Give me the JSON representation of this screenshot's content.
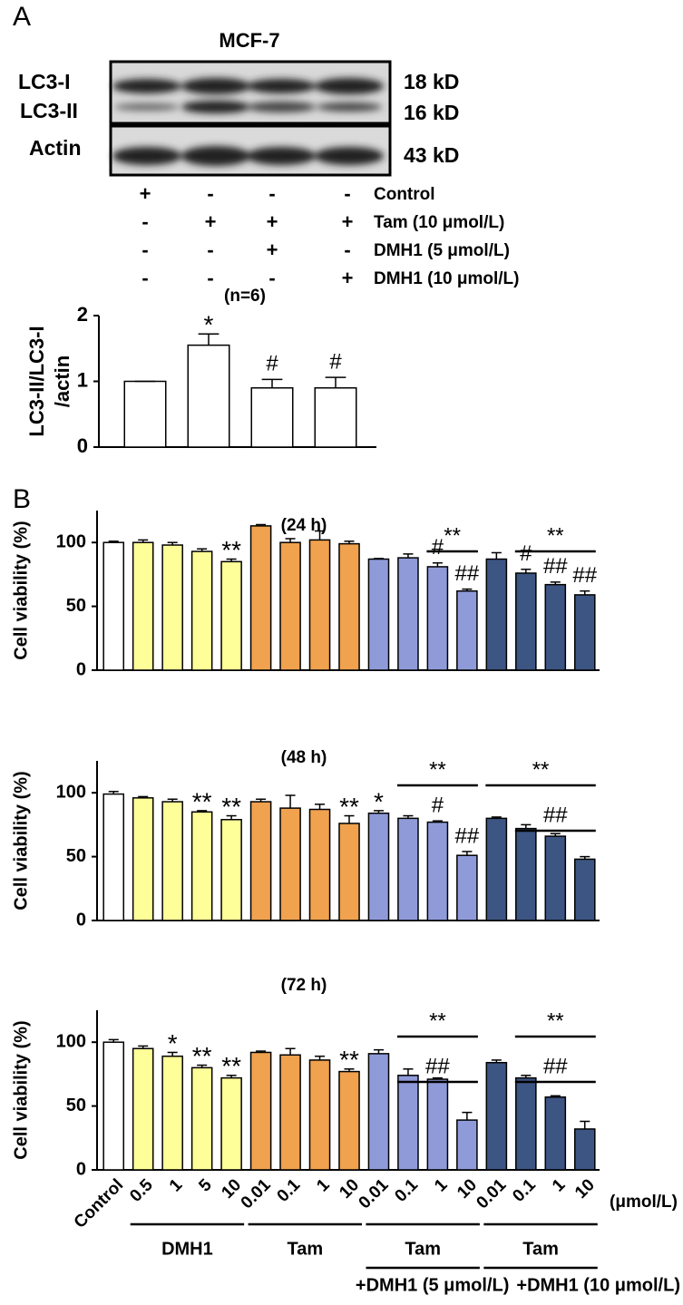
{
  "panel_labels": [
    "A",
    "B"
  ],
  "blot": {
    "title": "MCF-7",
    "bands": [
      {
        "label": "LC3-I",
        "size": "18 kD"
      },
      {
        "label": "LC3-II",
        "size": "16 kD"
      },
      {
        "label": "Actin",
        "size": "43 kD"
      }
    ]
  },
  "treatments": [
    {
      "label": "Control",
      "marks": [
        "+",
        "-",
        "-",
        "-"
      ]
    },
    {
      "label": "Tam (10 μmol/L)",
      "marks": [
        "-",
        "+",
        "+",
        "+"
      ]
    },
    {
      "label": "DMH1 (5 μmol/L)",
      "marks": [
        "-",
        "-",
        "+",
        "-"
      ]
    },
    {
      "label": "DMH1 (10 μmol/L)",
      "marks": [
        "-",
        "-",
        "-",
        "+"
      ]
    }
  ],
  "chart_data": [
    {
      "type": "bar",
      "subtitle": "(n=6)",
      "ylabel": [
        "LC3-II/LC3-I",
        "/actin"
      ],
      "values": [
        1,
        1.55,
        0.9,
        0.9
      ],
      "errors": [
        0,
        0.17,
        0.13,
        0.16
      ],
      "colors": [
        "#ffffff",
        "#ffffff",
        "#ffffff",
        "#ffffff"
      ],
      "annotations": [
        null,
        "*",
        "#",
        "#"
      ],
      "ylim": [
        0,
        2
      ],
      "yticks": [
        0,
        1,
        2
      ]
    },
    {
      "type": "bar",
      "title": "(24 h)",
      "ylabel": [
        "Cell viability (%)"
      ],
      "values": [
        100,
        100,
        98,
        93,
        85,
        113,
        100,
        102,
        99,
        87,
        88,
        81,
        62,
        87,
        76,
        67,
        59
      ],
      "errors": [
        1,
        2,
        2,
        2,
        2,
        1,
        3,
        7,
        2,
        0.5,
        3,
        3,
        1.5,
        5,
        3,
        2,
        3
      ],
      "colors": [
        "#ffffff",
        "#ffff99",
        "#ffff99",
        "#ffff99",
        "#ffff99",
        "#f0a24e",
        "#f0a24e",
        "#f0a24e",
        "#f0a24e",
        "#8f9bd9",
        "#8f9bd9",
        "#8f9bd9",
        "#8f9bd9",
        "#3d5583",
        "#3d5583",
        "#3d5583",
        "#3d5583"
      ],
      "annotations": [
        null,
        null,
        null,
        null,
        "**",
        null,
        null,
        null,
        null,
        null,
        null,
        "#",
        "##",
        null,
        "#",
        "##",
        "##"
      ],
      "brackets": [
        {
          "text": "**",
          "span": [
            11,
            12
          ]
        },
        {
          "text": "**",
          "span": [
            14,
            16
          ]
        }
      ],
      "ylim": [
        0,
        125
      ],
      "yticks": [
        0,
        50,
        100
      ]
    },
    {
      "type": "bar",
      "title": "(48 h)",
      "ylabel": [
        "Cell viability (%)"
      ],
      "values": [
        99,
        96,
        93,
        85,
        79,
        93,
        88,
        87,
        76,
        84,
        80,
        77,
        51,
        80,
        72,
        66,
        48
      ],
      "errors": [
        2,
        1,
        2,
        1,
        3,
        2,
        10,
        4,
        6,
        2,
        2,
        1,
        3,
        1,
        3,
        2,
        2
      ],
      "colors": [
        "#ffffff",
        "#ffff99",
        "#ffff99",
        "#ffff99",
        "#ffff99",
        "#f0a24e",
        "#f0a24e",
        "#f0a24e",
        "#f0a24e",
        "#8f9bd9",
        "#8f9bd9",
        "#8f9bd9",
        "#8f9bd9",
        "#3d5583",
        "#3d5583",
        "#3d5583",
        "#3d5583"
      ],
      "annotations": [
        null,
        null,
        null,
        "**",
        "**",
        null,
        null,
        null,
        "**",
        "*",
        null,
        "#",
        "##",
        null,
        null,
        null,
        null
      ],
      "brackets": [
        {
          "text": "**",
          "span": [
            10,
            12
          ]
        },
        {
          "text": "**",
          "span": [
            13,
            16
          ]
        },
        {
          "text": "##",
          "span": [
            14,
            16
          ]
        }
      ],
      "ylim": [
        0,
        125
      ],
      "yticks": [
        0,
        50,
        100
      ]
    },
    {
      "type": "bar",
      "title": "(72 h)",
      "ylabel": [
        "Cell viability (%)"
      ],
      "categories": [
        "Control",
        "0.5",
        "1",
        "5",
        "10",
        "0.01",
        "0.1",
        "1",
        "10",
        "0.01",
        "0.1",
        "1",
        "10",
        "0.01",
        "0.1",
        "1",
        "10"
      ],
      "x_unit": "(μmol/L)",
      "values": [
        100,
        95,
        89,
        80,
        72,
        92,
        90,
        86,
        77,
        91,
        74,
        71,
        39,
        84,
        72,
        57,
        32
      ],
      "errors": [
        2,
        2,
        3,
        2,
        2,
        1,
        5,
        3,
        2,
        3,
        5,
        1,
        6,
        2,
        2,
        1,
        6
      ],
      "colors": [
        "#ffffff",
        "#ffff99",
        "#ffff99",
        "#ffff99",
        "#ffff99",
        "#f0a24e",
        "#f0a24e",
        "#f0a24e",
        "#f0a24e",
        "#8f9bd9",
        "#8f9bd9",
        "#8f9bd9",
        "#8f9bd9",
        "#3d5583",
        "#3d5583",
        "#3d5583",
        "#3d5583"
      ],
      "annotations": [
        null,
        null,
        "*",
        "**",
        "**",
        null,
        null,
        null,
        "**",
        null,
        null,
        null,
        null,
        null,
        null,
        null,
        null
      ],
      "brackets": [
        {
          "text": "**",
          "span": [
            10,
            12
          ]
        },
        {
          "text": "##",
          "span": [
            10,
            12
          ]
        },
        {
          "text": "**",
          "span": [
            14,
            16
          ]
        },
        {
          "text": "##",
          "span": [
            14,
            16
          ]
        }
      ],
      "groups": [
        {
          "name": [
            "DMH1"
          ],
          "span": [
            1,
            4
          ]
        },
        {
          "name": [
            "Tam"
          ],
          "span": [
            5,
            8
          ]
        },
        {
          "name": [
            "Tam",
            "+DMH1 (5 μmol/L)"
          ],
          "span": [
            9,
            12
          ]
        },
        {
          "name": [
            "Tam",
            "+DMH1 (10 μmol/L)"
          ],
          "span": [
            13,
            16
          ]
        }
      ],
      "ylim": [
        0,
        125
      ],
      "yticks": [
        0,
        50,
        100
      ]
    }
  ]
}
